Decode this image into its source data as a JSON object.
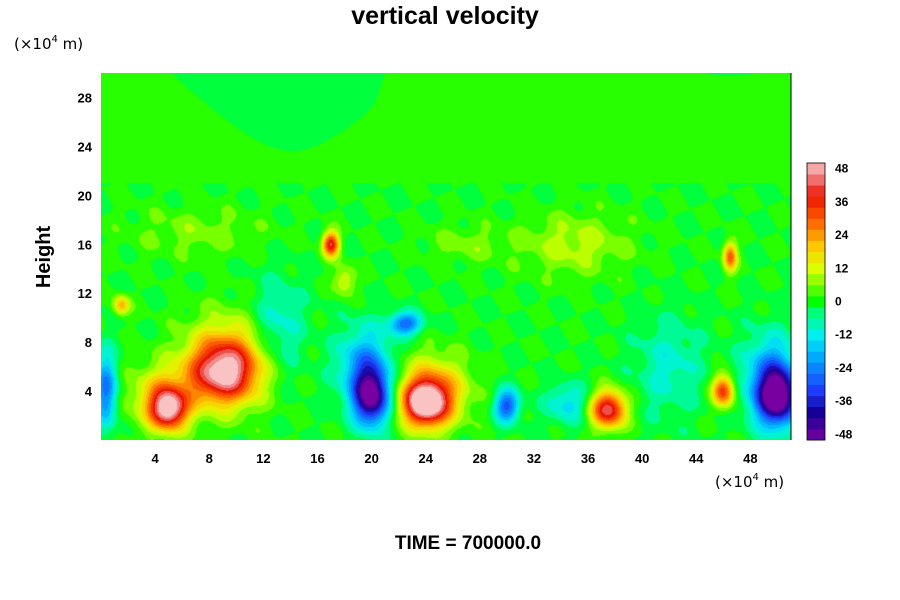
{
  "chart_data": {
    "type": "heatmap",
    "title": "vertical velocity",
    "ylabel": "Height",
    "xlabel": "",
    "x_unit": {
      "prefix": "(×10",
      "exponent": "4",
      "suffix": " m)"
    },
    "y_unit": {
      "prefix": "(×10",
      "exponent": "4",
      "suffix": " m)"
    },
    "xlim": [
      0,
      51
    ],
    "ylim": [
      0,
      30
    ],
    "x_ticks": [
      4,
      8,
      12,
      16,
      20,
      24,
      28,
      32,
      36,
      40,
      44,
      48
    ],
    "y_ticks": [
      4,
      8,
      12,
      16,
      20,
      24,
      28
    ],
    "x_tick_labels": [
      "4",
      "8",
      "12",
      "16",
      "20",
      "24",
      "28",
      "32",
      "36",
      "40",
      "44",
      "48"
    ],
    "y_tick_labels": [
      "4",
      "8",
      "12",
      "16",
      "20",
      "24",
      "28"
    ],
    "colorbar": {
      "min": -50,
      "max": 50,
      "step": 4,
      "ticks": [
        48,
        36,
        24,
        12,
        0,
        -12,
        -24,
        -36,
        -48
      ],
      "tick_labels": [
        "48",
        "36",
        "24",
        "12",
        "0",
        "-12",
        "-24",
        "-36",
        "-48"
      ]
    },
    "features": [
      {
        "x": 5,
        "y": 2.5,
        "value": 42,
        "sx": 1.3,
        "sy": 1.6
      },
      {
        "x": 4.5,
        "y": 3.5,
        "value": 20,
        "sx": 2.3,
        "sy": 2.5
      },
      {
        "x": 9,
        "y": 5.5,
        "value": 36,
        "sx": 2.4,
        "sy": 2.4
      },
      {
        "x": 9.5,
        "y": 6.5,
        "value": 22,
        "sx": 3.2,
        "sy": 3.6
      },
      {
        "x": 1.5,
        "y": 11,
        "value": 22,
        "sx": 0.6,
        "sy": 0.8
      },
      {
        "x": 0.4,
        "y": 4,
        "value": -26,
        "sx": 0.8,
        "sy": 3.0
      },
      {
        "x": 17,
        "y": 16,
        "value": 40,
        "sx": 0.6,
        "sy": 1.0
      },
      {
        "x": 18,
        "y": 13,
        "value": 14,
        "sx": 0.8,
        "sy": 1.2
      },
      {
        "x": 20,
        "y": 3.5,
        "value": -46,
        "sx": 1.3,
        "sy": 2.3
      },
      {
        "x": 19.5,
        "y": 6,
        "value": -22,
        "sx": 2.0,
        "sy": 3.2
      },
      {
        "x": 22.5,
        "y": 9.5,
        "value": -28,
        "sx": 1.2,
        "sy": 0.9
      },
      {
        "x": 24,
        "y": 3,
        "value": 48,
        "sx": 1.6,
        "sy": 1.8
      },
      {
        "x": 24.5,
        "y": 4,
        "value": 24,
        "sx": 2.6,
        "sy": 2.8
      },
      {
        "x": 30,
        "y": 2.8,
        "value": -30,
        "sx": 0.9,
        "sy": 1.3
      },
      {
        "x": 34.5,
        "y": 3,
        "value": -14,
        "sx": 1.6,
        "sy": 1.6
      },
      {
        "x": 37.5,
        "y": 2.5,
        "value": 44,
        "sx": 1.3,
        "sy": 1.5
      },
      {
        "x": 46,
        "y": 4,
        "value": 36,
        "sx": 0.8,
        "sy": 1.3
      },
      {
        "x": 46.5,
        "y": 15,
        "value": 30,
        "sx": 0.5,
        "sy": 1.2
      },
      {
        "x": 50,
        "y": 3.5,
        "value": -46,
        "sx": 1.4,
        "sy": 2.2
      },
      {
        "x": 49.5,
        "y": 5,
        "value": -24,
        "sx": 2.0,
        "sy": 3.5
      },
      {
        "x": 35,
        "y": 16,
        "value": 10,
        "sx": 4.0,
        "sy": 2.5
      },
      {
        "x": 27,
        "y": 16,
        "value": 6,
        "sx": 3.0,
        "sy": 1.5
      },
      {
        "x": 13,
        "y": 9,
        "value": -12,
        "sx": 2.0,
        "sy": 4.0
      },
      {
        "x": 42,
        "y": 6,
        "value": -10,
        "sx": 2.5,
        "sy": 4.0
      },
      {
        "x": 7,
        "y": 17,
        "value": 6,
        "sx": 5.0,
        "sy": 2.0
      }
    ]
  },
  "footer": {
    "time_label": "TIME = 700000.0"
  },
  "colors": {
    "background": "#00ff00",
    "axis": "#000000"
  }
}
